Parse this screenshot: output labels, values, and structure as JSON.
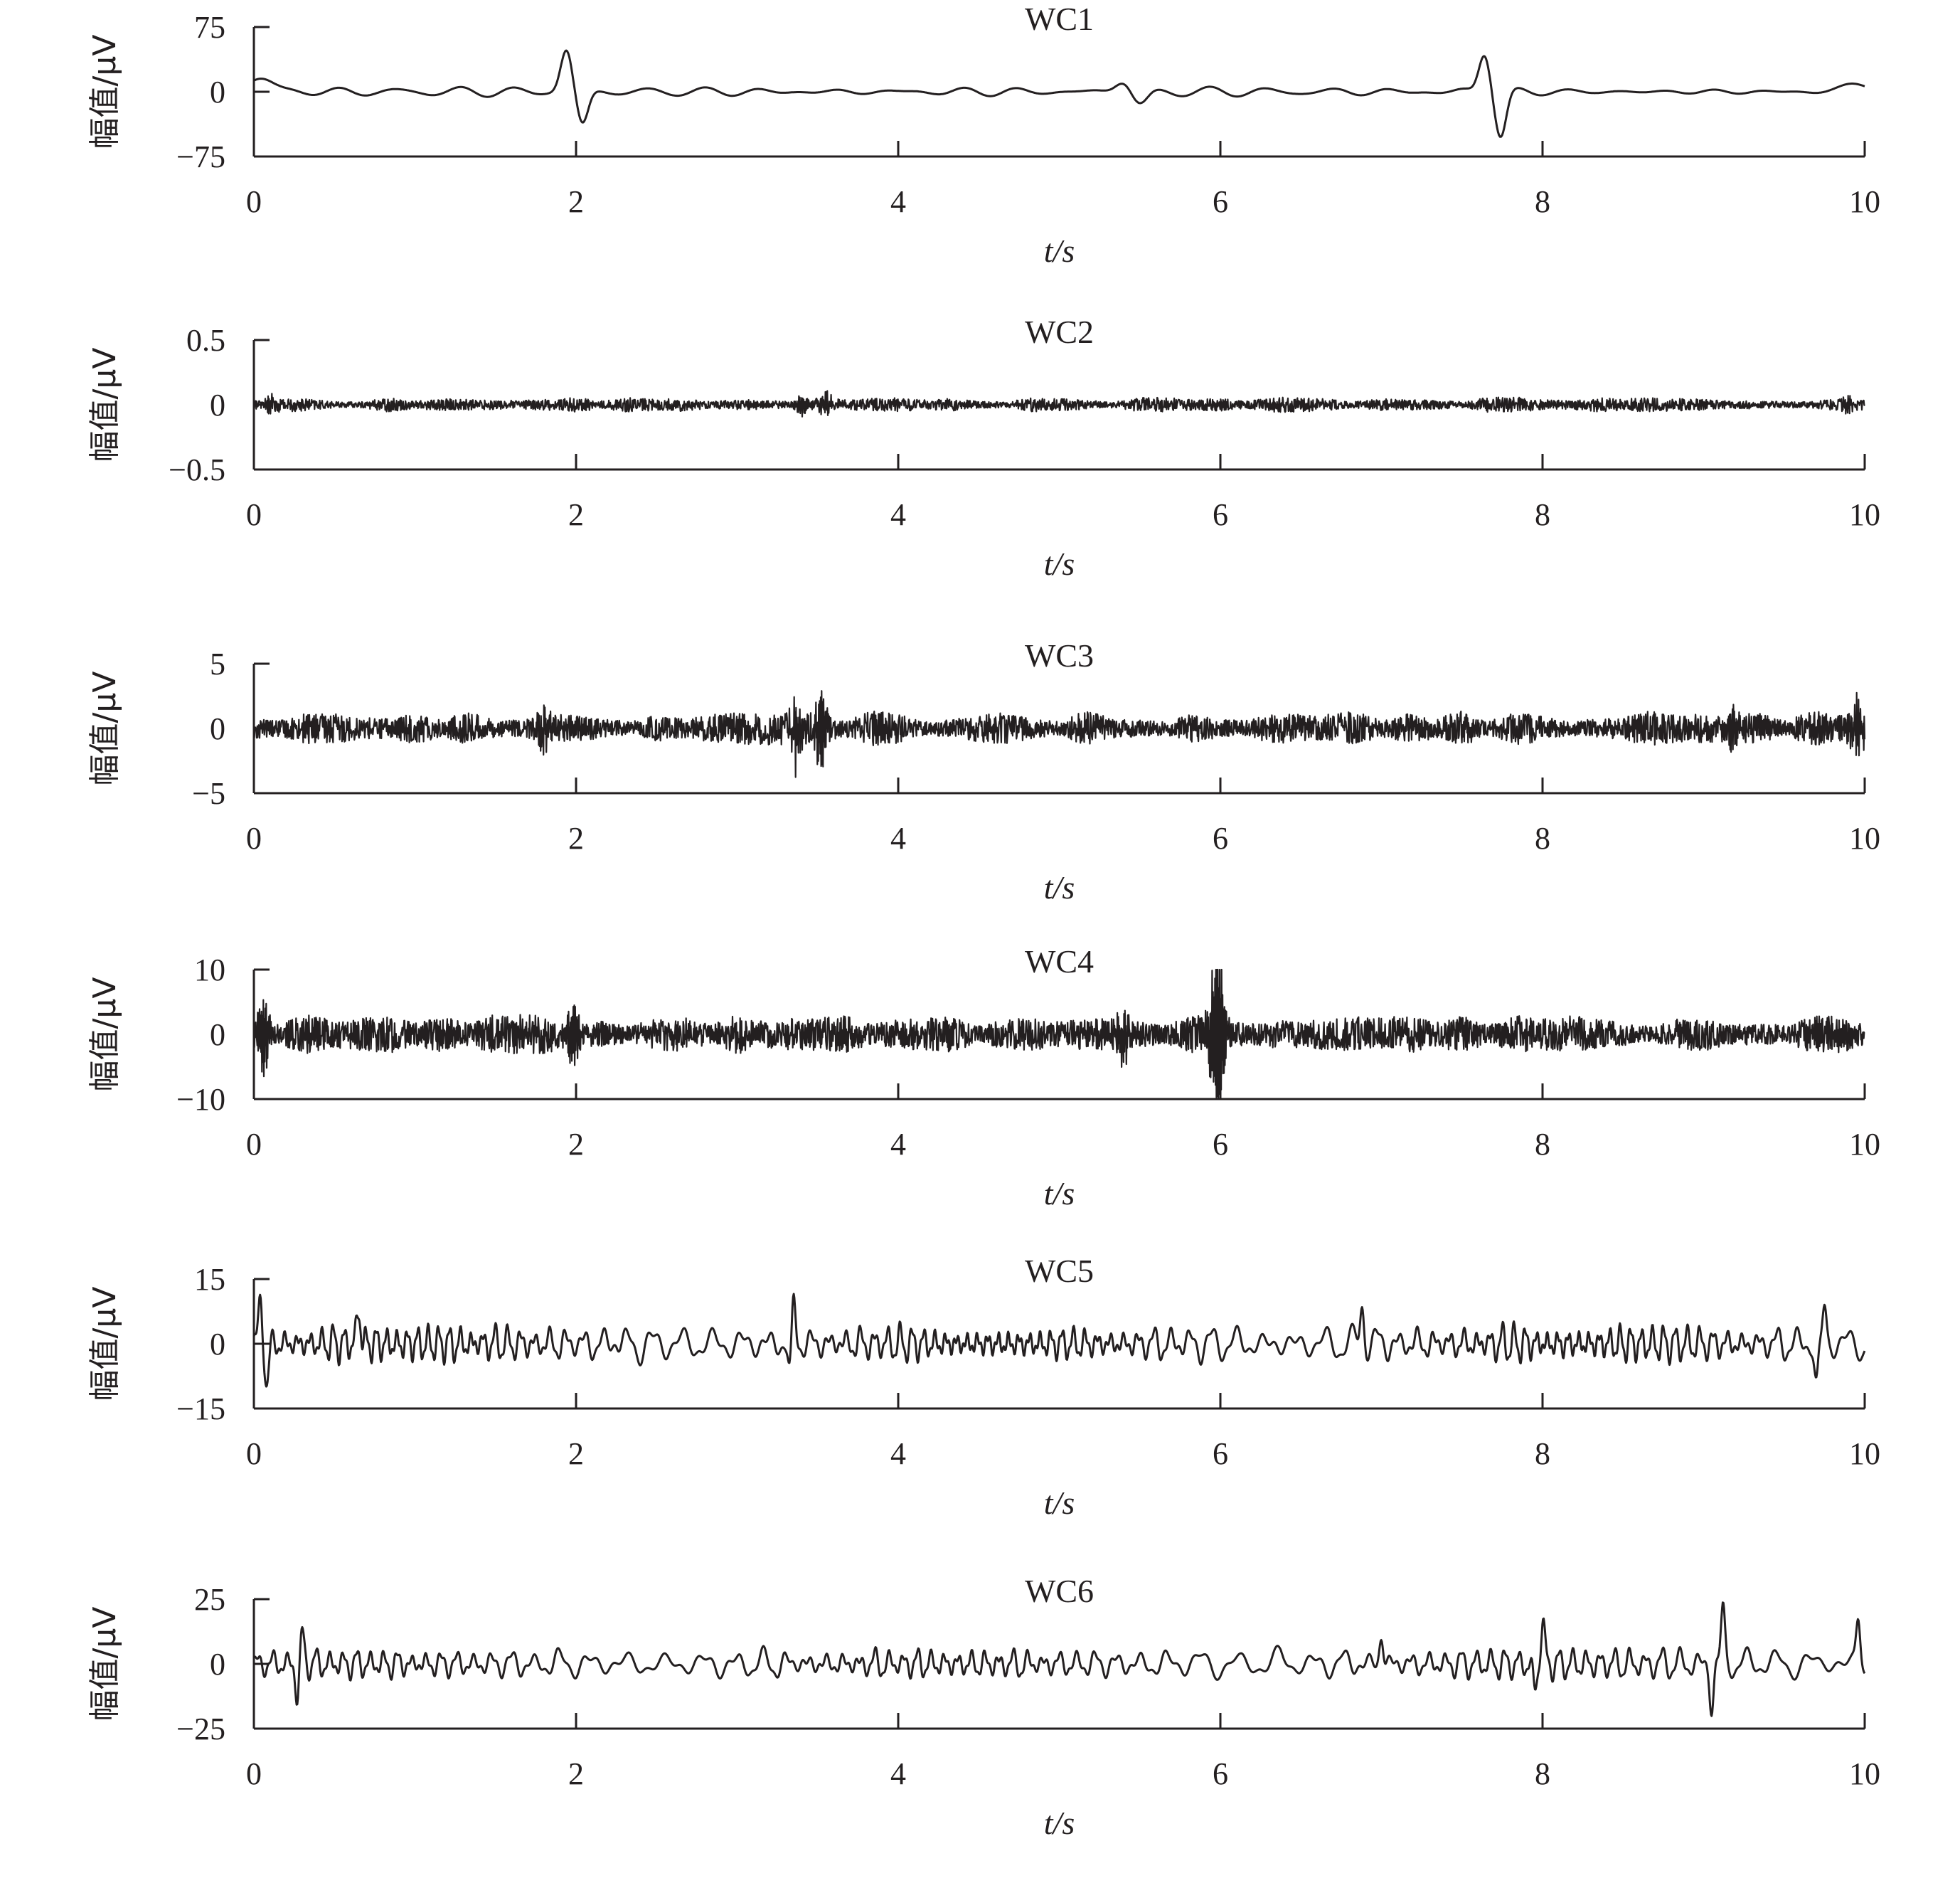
{
  "chart_data": [
    {
      "type": "line",
      "title": "WC1",
      "xlabel": "t/s",
      "ylabel": "幅值/μV",
      "xlim": [
        0,
        10
      ],
      "ylim": [
        -75,
        75
      ],
      "xticks": [
        "0",
        "2",
        "4",
        "6",
        "8",
        "10"
      ],
      "yticks": [
        "75",
        "0",
        "−75"
      ],
      "series": [
        {
          "kind": "smooth",
          "base_amplitude": 4,
          "cycles_per_second": 3.2,
          "events": [
            {
              "t": 0.05,
              "value": 15,
              "width": 0.08
            },
            {
              "t": 1.94,
              "value": 48,
              "width": 0.035
            },
            {
              "t": 2.04,
              "value": -38,
              "width": 0.035
            },
            {
              "t": 5.4,
              "value": 14,
              "width": 0.05
            },
            {
              "t": 5.5,
              "value": -16,
              "width": 0.05
            },
            {
              "t": 7.64,
              "value": 46,
              "width": 0.035
            },
            {
              "t": 7.74,
              "value": -52,
              "width": 0.035
            },
            {
              "t": 9.95,
              "value": 10,
              "width": 0.08
            }
          ]
        }
      ]
    },
    {
      "type": "line",
      "title": "WC2",
      "xlabel": "t/s",
      "ylabel": "幅值/μV",
      "xlim": [
        0,
        10
      ],
      "ylim": [
        -0.5,
        0.5
      ],
      "xticks": [
        "0",
        "2",
        "4",
        "6",
        "8",
        "10"
      ],
      "yticks": [
        "0.5",
        "0",
        "−0.5"
      ],
      "series": [
        {
          "kind": "dense",
          "base_amplitude": 0.06,
          "peaks": [
            {
              "t": 3.4,
              "value": 0.1
            },
            {
              "t": 3.55,
              "value": 0.12
            },
            {
              "t": 0.1,
              "value": 0.09
            },
            {
              "t": 9.9,
              "value": 0.09
            }
          ]
        }
      ]
    },
    {
      "type": "line",
      "title": "WC3",
      "xlabel": "t/s",
      "ylabel": "幅值/μV",
      "xlim": [
        0,
        10
      ],
      "ylim": [
        -5,
        5
      ],
      "xticks": [
        "0",
        "2",
        "4",
        "6",
        "8",
        "10"
      ],
      "yticks": [
        "5",
        "0",
        "−5"
      ],
      "series": [
        {
          "kind": "dense",
          "base_amplitude": 1.4,
          "peaks": [
            {
              "t": 1.8,
              "value": 2.2
            },
            {
              "t": 3.36,
              "value": 3.6
            },
            {
              "t": 3.52,
              "value": 3.8
            },
            {
              "t": 9.2,
              "value": 2.7
            },
            {
              "t": 9.96,
              "value": 3.0
            }
          ]
        }
      ]
    },
    {
      "type": "line",
      "title": "WC4",
      "xlabel": "t/s",
      "ylabel": "幅值/μV",
      "xlim": [
        0,
        10
      ],
      "ylim": [
        -10,
        10
      ],
      "xticks": [
        "0",
        "2",
        "4",
        "6",
        "8",
        "10"
      ],
      "yticks": [
        "10",
        "0",
        "−10"
      ],
      "series": [
        {
          "kind": "dense",
          "base_amplitude": 3.2,
          "peaks": [
            {
              "t": 0.06,
              "value": -7.5
            },
            {
              "t": 1.98,
              "value": -7.5
            },
            {
              "t": 5.4,
              "value": 6.5
            },
            {
              "t": 5.95,
              "value": -6.5
            },
            {
              "t": 5.98,
              "value": 7.5
            },
            {
              "t": 6.0,
              "value": -9.5
            }
          ]
        }
      ]
    },
    {
      "type": "line",
      "title": "WC5",
      "xlabel": "t/s",
      "ylabel": "幅值/μV",
      "xlim": [
        0,
        10
      ],
      "ylim": [
        -15,
        15
      ],
      "xticks": [
        "0",
        "2",
        "4",
        "6",
        "8",
        "10"
      ],
      "yticks": [
        "15",
        "0",
        "−15"
      ],
      "series": [
        {
          "kind": "oscillation",
          "base_amplitude": 4.5,
          "cycles_per_second": 13,
          "peaks": [
            {
              "t": 0.04,
              "value": 11
            },
            {
              "t": 0.08,
              "value": -11
            },
            {
              "t": 0.65,
              "value": 9
            },
            {
              "t": 3.35,
              "value": 12.5
            },
            {
              "t": 3.33,
              "value": -10
            },
            {
              "t": 6.88,
              "value": 11
            },
            {
              "t": 9.7,
              "value": -11
            },
            {
              "t": 9.75,
              "value": 10
            }
          ]
        }
      ]
    },
    {
      "type": "line",
      "title": "WC6",
      "xlabel": "t/s",
      "ylabel": "幅值/μV",
      "xlim": [
        0,
        10
      ],
      "ylim": [
        -25,
        25
      ],
      "xticks": [
        "0",
        "2",
        "4",
        "6",
        "8",
        "10"
      ],
      "yticks": [
        "25",
        "0",
        "−25"
      ],
      "series": [
        {
          "kind": "oscillation",
          "base_amplitude": 6,
          "cycles_per_second": 10,
          "peaks": [
            {
              "t": 0.3,
              "value": 14
            },
            {
              "t": 0.27,
              "value": -15
            },
            {
              "t": 7.0,
              "value": 13
            },
            {
              "t": 8.0,
              "value": 17
            },
            {
              "t": 7.95,
              "value": -12
            },
            {
              "t": 9.12,
              "value": 22
            },
            {
              "t": 9.05,
              "value": -18
            },
            {
              "t": 9.96,
              "value": 17
            }
          ]
        }
      ]
    }
  ]
}
